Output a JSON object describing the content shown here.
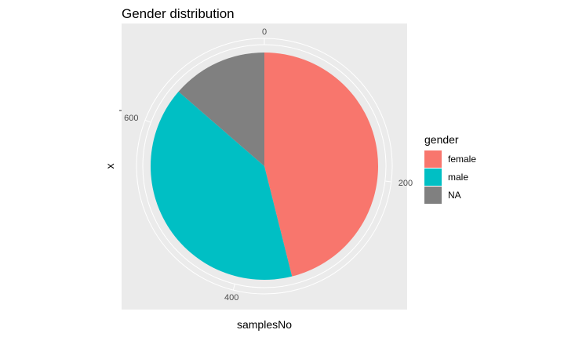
{
  "chart_data": {
    "type": "pie",
    "title": "Gender distribution",
    "xlabel": "samplesNo",
    "ylabel": "x",
    "categories": [
      "female",
      "male",
      "NA"
    ],
    "values": [
      342,
      299,
      101
    ],
    "colors": [
      "#F8766D",
      "#00BFC4",
      "#808080"
    ],
    "radial_axis": {
      "ticks": [
        0,
        200,
        400,
        600
      ],
      "tick_labels": [
        "0",
        "200",
        "400",
        "600"
      ],
      "max": 742
    },
    "legend": {
      "title": "gender",
      "placement": "right",
      "entries": [
        "female",
        "male",
        "NA"
      ]
    },
    "grid": true,
    "panel_background": "#EBEBEB"
  }
}
